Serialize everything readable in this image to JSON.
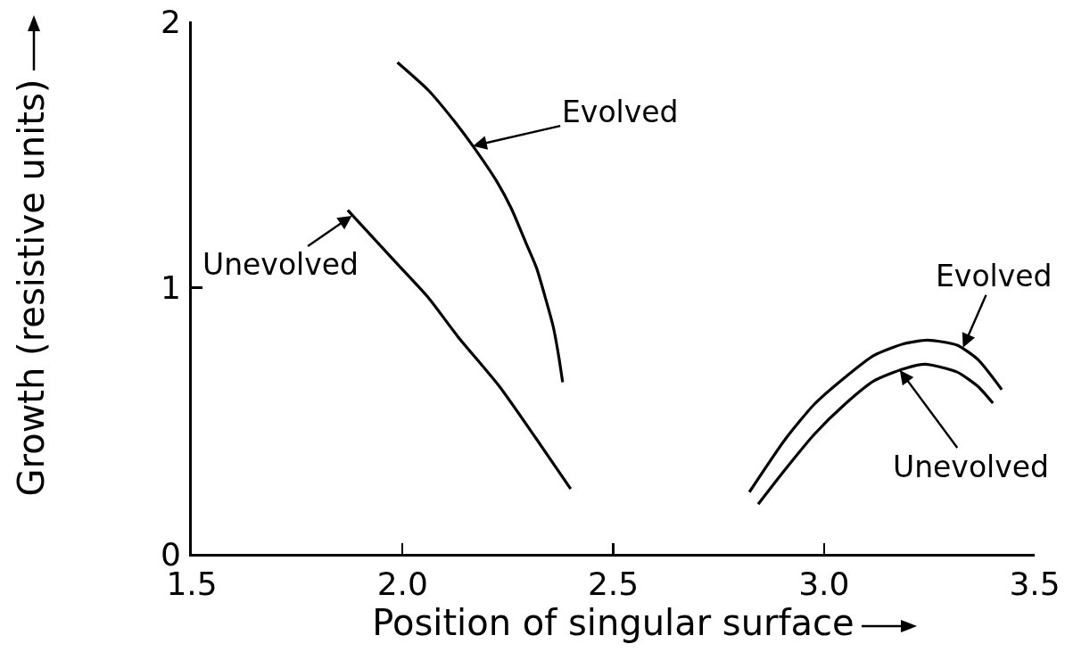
{
  "chart_data": {
    "type": "line",
    "xlabel": "Position of singular surface",
    "ylabel": "Growth (resistive units)",
    "xlim": [
      1.5,
      3.5
    ],
    "xticks": [
      1.5,
      {
        "value": 2,
        "label": "2.0"
      },
      2.5,
      {
        "value": 3,
        "label": "3.0"
      },
      3.5
    ],
    "ylim": [
      0,
      2
    ],
    "yticks": [
      0,
      1,
      2
    ],
    "grid": false,
    "marker": "none",
    "line_style": "solid",
    "series": [
      {
        "color": "#000000",
        "x": [
          1.988,
          2.061,
          2.131,
          2.167,
          2.224,
          2.258,
          2.294,
          2.318,
          2.339,
          2.358,
          2.371,
          2.38
        ],
        "values": [
          1.846,
          1.742,
          1.609,
          1.532,
          1.398,
          1.298,
          1.164,
          1.074,
          0.962,
          0.851,
          0.739,
          0.645
        ]
      },
      {
        "color": "#000000",
        "x": [
          1.87,
          1.99,
          2.061,
          2.131,
          2.23,
          2.315,
          2.399
        ],
        "values": [
          1.291,
          1.085,
          0.963,
          0.817,
          0.629,
          0.438,
          0.244
        ]
      },
      {
        "color": "#000000",
        "x": [
          2.823,
          2.907,
          2.977,
          3.049,
          3.119,
          3.189,
          3.246,
          3.316,
          3.366,
          3.422
        ],
        "values": [
          0.232,
          0.428,
          0.562,
          0.662,
          0.746,
          0.789,
          0.803,
          0.784,
          0.729,
          0.617
        ]
      },
      {
        "color": "#000000",
        "x": [
          2.844,
          2.907,
          2.977,
          3.049,
          3.119,
          3.189,
          3.24,
          3.316,
          3.366,
          3.401
        ],
        "values": [
          0.187,
          0.315,
          0.449,
          0.561,
          0.65,
          0.695,
          0.712,
          0.683,
          0.628,
          0.566
        ]
      }
    ],
    "annotations": [
      {
        "text": "Evolved",
        "x": 2.167,
        "y": 1.532
      },
      {
        "text": "Unevolved",
        "x": 1.88,
        "y": 1.27
      },
      {
        "text": "Evolved",
        "x": 3.33,
        "y": 0.775
      },
      {
        "text": "Unevolved",
        "x": 3.18,
        "y": 0.69
      }
    ]
  }
}
